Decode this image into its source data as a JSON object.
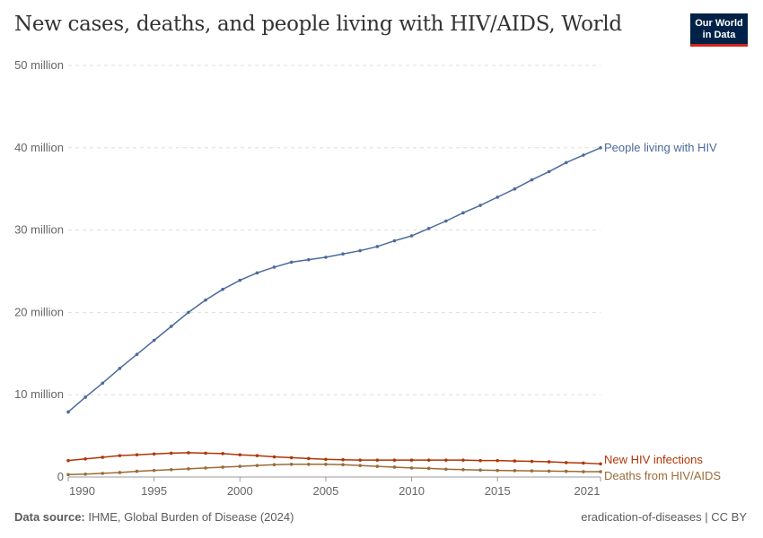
{
  "title": "New cases, deaths, and people living with HIV/AIDS, World",
  "logo": {
    "line1": "Our World",
    "line2": "in Data"
  },
  "footer": {
    "source_label": "Data source:",
    "source": "IHME, Global Burden of Disease (2024)",
    "right": "eradication-of-diseases | CC BY"
  },
  "chart_data": {
    "type": "line",
    "title": "New cases, deaths, and people living with HIV/AIDS, World",
    "xlim": [
      1990,
      2021
    ],
    "ylim": [
      0,
      50000000
    ],
    "grid": true,
    "legend": "right (inline labels)",
    "x_ticks": [
      "1990",
      "1995",
      "2000",
      "2005",
      "2010",
      "2015",
      "2021"
    ],
    "y_ticks": [
      "0",
      "10 million",
      "20 million",
      "30 million",
      "40 million",
      "50 million"
    ],
    "x": [
      1990,
      1991,
      1992,
      1993,
      1994,
      1995,
      1996,
      1997,
      1998,
      1999,
      2000,
      2001,
      2002,
      2003,
      2004,
      2005,
      2006,
      2007,
      2008,
      2009,
      2010,
      2011,
      2012,
      2013,
      2014,
      2015,
      2016,
      2017,
      2018,
      2019,
      2020,
      2021
    ],
    "series": [
      {
        "name": "People living with HIV",
        "color": "#4c6a9c",
        "values": [
          7.9,
          9.7,
          11.4,
          13.2,
          14.9,
          16.6,
          18.3,
          20.0,
          21.5,
          22.8,
          23.9,
          24.8,
          25.5,
          26.1,
          26.4,
          26.7,
          27.1,
          27.5,
          28.0,
          28.7,
          29.3,
          30.2,
          31.1,
          32.1,
          33.0,
          34.0,
          35.0,
          36.1,
          37.1,
          38.2,
          39.1,
          40.0
        ]
      },
      {
        "name": "New HIV infections",
        "color": "#b13507",
        "values": [
          2.0,
          2.2,
          2.4,
          2.6,
          2.7,
          2.8,
          2.9,
          2.95,
          2.9,
          2.85,
          2.7,
          2.6,
          2.45,
          2.35,
          2.25,
          2.15,
          2.1,
          2.05,
          2.05,
          2.05,
          2.05,
          2.05,
          2.05,
          2.05,
          2.0,
          2.0,
          1.95,
          1.9,
          1.85,
          1.75,
          1.7,
          1.6
        ]
      },
      {
        "name": "Deaths from HIV/AIDS",
        "color": "#9a6b38",
        "values": [
          0.3,
          0.35,
          0.45,
          0.55,
          0.7,
          0.8,
          0.9,
          1.0,
          1.1,
          1.2,
          1.3,
          1.4,
          1.5,
          1.55,
          1.55,
          1.55,
          1.5,
          1.4,
          1.3,
          1.2,
          1.1,
          1.05,
          0.95,
          0.9,
          0.85,
          0.8,
          0.78,
          0.75,
          0.72,
          0.7,
          0.65,
          0.65
        ]
      }
    ],
    "value_unit": "million"
  }
}
